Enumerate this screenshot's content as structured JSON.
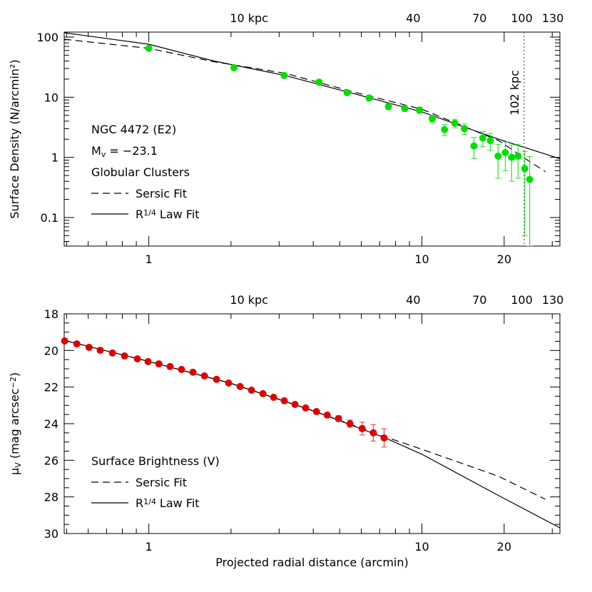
{
  "chart_data": [
    {
      "type": "scatter",
      "ylabel": [
        {
          "text": "Surface Density (N/arcmin²)"
        }
      ],
      "xlog": true,
      "xlim": [
        0.49,
        32
      ],
      "xticks": [
        1,
        10,
        20
      ],
      "xminor": [
        0.5,
        0.6,
        0.7,
        0.8,
        0.9,
        2,
        3,
        4,
        5,
        6,
        7,
        8,
        9,
        30
      ],
      "x2lim": [
        2.1,
        138
      ],
      "x2ticks": [
        {
          "value": 10,
          "label": "10 kpc"
        },
        40,
        70,
        100,
        130
      ],
      "ylog": true,
      "ylim": [
        0.0335,
        121
      ],
      "yticks": [
        {
          "value": 0.1,
          "label": "0.1"
        },
        1,
        10,
        100
      ],
      "yminor": [
        0.04,
        0.05,
        0.06,
        0.07,
        0.08,
        0.09,
        0.2,
        0.3,
        0.4,
        0.5,
        0.6,
        0.7,
        0.8,
        0.9,
        2,
        3,
        4,
        5,
        6,
        7,
        8,
        9,
        20,
        30,
        40,
        50,
        60,
        70,
        80,
        90
      ],
      "points": {
        "color": "#00e000",
        "error_color": "#33dd33",
        "x": [
          1.0,
          2.05,
          3.13,
          4.2,
          5.32,
          6.41,
          7.54,
          8.65,
          9.8,
          10.9,
          12.1,
          13.2,
          14.3,
          15.5,
          16.7,
          17.8,
          19.0,
          20.2,
          21.3,
          22.5,
          23.8,
          24.8
        ],
        "values": [
          65,
          31,
          23,
          17.8,
          11.9,
          9.7,
          7.0,
          6.5,
          6.1,
          4.4,
          2.9,
          3.7,
          3.0,
          1.55,
          2.1,
          1.9,
          1.05,
          1.2,
          1.0,
          1.05,
          0.65,
          0.43
        ],
        "errors": [
          5,
          2.5,
          1.8,
          1.5,
          1.0,
          0.9,
          0.8,
          0.7,
          0.7,
          0.6,
          0.6,
          0.6,
          0.6,
          0.6,
          0.6,
          0.6,
          0.6,
          0.6,
          0.6,
          0.6,
          0.6,
          0.6
        ]
      },
      "series": [
        {
          "name": [
            {
              "text": "Sersic Fit"
            }
          ],
          "style": "dashed",
          "color": "#000000",
          "x": [
            0.49,
            1,
            1.73,
            3.15,
            5.75,
            10,
            19.1,
            24,
            28.3
          ],
          "values": [
            92,
            65,
            39,
            25,
            11.9,
            6.3,
            1.9,
            0.94,
            0.58
          ]
        },
        {
          "name": [
            {
              "text": "R"
            },
            {
              "text": "1/4",
              "sup": true
            },
            {
              "text": " Law Fit"
            }
          ],
          "style": "solid",
          "color": "#000000",
          "x": [
            0.49,
            1,
            1.73,
            3.15,
            5.75,
            10,
            19.1,
            32
          ],
          "values": [
            118,
            76,
            40,
            23,
            11.2,
            5.7,
            2.0,
            0.95
          ]
        }
      ],
      "notes": [
        [
          {
            "text": "NGC 4472 (E2)"
          }
        ],
        [
          {
            "text": "M"
          },
          {
            "text": "v",
            "sub": true
          },
          {
            "text": " = −23.1"
          }
        ],
        [
          {
            "text": "Globular Clusters"
          }
        ]
      ],
      "vline": {
        "x2": 102,
        "label": "102 kpc"
      }
    },
    {
      "type": "scatter",
      "ylabel": [
        {
          "text": "μ"
        },
        {
          "text": "V",
          "sub": true
        },
        {
          "text": " (mag arcsec"
        },
        {
          "text": "−2",
          "sup": true
        },
        {
          "text": ")"
        }
      ],
      "xlabel": "Projected radial distance (arcmin)",
      "xlog": true,
      "xlim": [
        0.49,
        32
      ],
      "xticks": [
        1,
        10,
        20
      ],
      "xminor": [
        0.5,
        0.6,
        0.7,
        0.8,
        0.9,
        2,
        3,
        4,
        5,
        6,
        7,
        8,
        9,
        30
      ],
      "x2lim": [
        2.1,
        138
      ],
      "x2ticks": [
        {
          "value": 10,
          "label": "10 kpc"
        },
        40,
        70,
        100,
        130
      ],
      "ylim": [
        18,
        30
      ],
      "yinvert": true,
      "yticks": [
        18,
        20,
        22,
        24,
        26,
        28,
        30
      ],
      "yminor": [
        18.5,
        19,
        19.5,
        20.5,
        21,
        21.5,
        22.5,
        23,
        23.5,
        24.5,
        25,
        25.5,
        26.5,
        27,
        27.5,
        28.5,
        29,
        29.5
      ],
      "points": {
        "color": "#e00000",
        "error_color": "#e04040",
        "x": [
          0.492,
          0.545,
          0.604,
          0.664,
          0.736,
          0.815,
          0.908,
          0.994,
          1.088,
          1.197,
          1.318,
          1.451,
          1.599,
          1.77,
          1.96,
          2.159,
          2.377,
          2.617,
          2.864,
          3.134,
          3.43,
          3.75,
          4.11,
          4.5,
          4.95,
          5.45,
          6.04,
          6.64,
          7.27
        ],
        "values": [
          19.48,
          19.64,
          19.83,
          19.99,
          20.14,
          20.3,
          20.46,
          20.61,
          20.73,
          20.88,
          21.04,
          21.19,
          21.39,
          21.58,
          21.78,
          21.97,
          22.17,
          22.36,
          22.56,
          22.75,
          22.95,
          23.14,
          23.34,
          23.53,
          23.72,
          24.0,
          24.27,
          24.5,
          24.78
        ],
        "errors": [
          0.05,
          0.05,
          0.05,
          0.05,
          0.05,
          0.05,
          0.05,
          0.05,
          0.05,
          0.05,
          0.05,
          0.05,
          0.05,
          0.05,
          0.05,
          0.05,
          0.05,
          0.05,
          0.05,
          0.05,
          0.05,
          0.05,
          0.05,
          0.08,
          0.15,
          0.2,
          0.35,
          0.45,
          0.5
        ]
      },
      "series": [
        {
          "name": [
            {
              "text": "Sersic Fit"
            }
          ],
          "style": "dashed",
          "color": "#000000",
          "x": [
            0.49,
            1,
            2,
            4,
            7.27,
            10,
            19.1,
            28.3
          ],
          "values": [
            19.45,
            20.6,
            21.8,
            23.3,
            24.7,
            25.4,
            26.88,
            28.13
          ]
        },
        {
          "name": [
            {
              "text": "R"
            },
            {
              "text": "1/4",
              "sup": true
            },
            {
              "text": " Law Fit"
            }
          ],
          "style": "solid",
          "color": "#000000",
          "x": [
            0.49,
            1,
            2,
            4,
            7.27,
            10,
            19.1,
            32
          ],
          "values": [
            19.45,
            20.6,
            21.8,
            23.3,
            24.75,
            25.67,
            27.93,
            29.69
          ]
        }
      ],
      "notes": [
        [
          {
            "text": "Surface Brightness (V)"
          }
        ]
      ]
    }
  ]
}
